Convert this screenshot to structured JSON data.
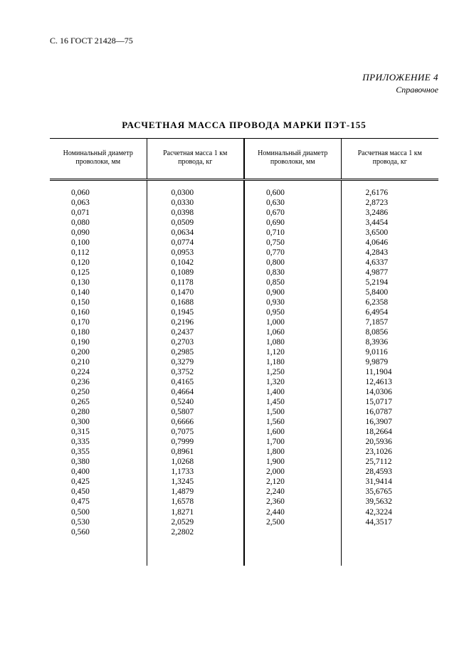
{
  "header": {
    "page_ref": "С. 16 ГОСТ 21428—75"
  },
  "appendix": {
    "label": "ПРИЛОЖЕНИЕ 4",
    "note": "Справочное"
  },
  "title": "РАСЧЕТНАЯ МАССА ПРОВОДА МАРКИ ПЭТ-155",
  "columns": {
    "diam": "Номинальный\nдиаметр проволоки,\nмм",
    "mass": "Расчетная масса\n1 км провода, кг"
  },
  "left": {
    "diam": [
      "0,060",
      "0,063",
      "0,071",
      "0,080",
      "0,090",
      "0,100",
      "0,112",
      "0,120",
      "0,125",
      "0,130",
      "0,140",
      "0,150",
      "0,160",
      "0,170",
      "0,180",
      "0,190",
      "0,200",
      "0,210",
      "0,224",
      "0,236",
      "0,250",
      "0,265",
      "0,280",
      "0,300",
      "0,315",
      "0,335",
      "0,355",
      "0,380",
      "0,400",
      "0,425",
      "0,450",
      "0,475",
      "0,500",
      "0,530",
      "0,560"
    ],
    "mass": [
      "0,0300",
      "0,0330",
      "0,0398",
      "0,0509",
      "0,0634",
      "0,0774",
      "0,0953",
      "0,1042",
      "0,1089",
      "0,1178",
      "0,1470",
      "0,1688",
      "0,1945",
      "0,2196",
      "0,2437",
      "0,2703",
      "0,2985",
      "0,3279",
      "0,3752",
      "0,4165",
      "0,4664",
      "0,5240",
      "0,5807",
      "0,6666",
      "0,7075",
      "0,7999",
      "0,8961",
      "1,0268",
      "1,1733",
      "1,3245",
      "1,4879",
      "1,6578",
      "1,8271",
      "2,0529",
      "2,2802"
    ]
  },
  "right": {
    "diam": [
      "0,600",
      "0,630",
      "0,670",
      "0,690",
      "0,710",
      "0,750",
      "0,770",
      "0,800",
      "0,830",
      "0,850",
      "0,900",
      "0,930",
      "0,950",
      "1,000",
      "1,060",
      "1,080",
      "1,120",
      "1,180",
      "1,250",
      "1,320",
      "1,400",
      "1,450",
      "1,500",
      "1,560",
      "1,600",
      "1,700",
      "1,800",
      "1,900",
      "2,000",
      "2,120",
      "2,240",
      "2,360",
      "2,440",
      "2,500"
    ],
    "mass": [
      "2,6176",
      "2,8723",
      "3,2486",
      "3,4454",
      "3,6500",
      "4,0646",
      "4,2843",
      "4,6337",
      "4,9877",
      "5,2194",
      "5,8400",
      "6,2358",
      "6,4954",
      "7,1857",
      "8,0856",
      "8,3936",
      "9,0116",
      "9,9879",
      "11,1904",
      "12,4613",
      "14,0306",
      "15,0717",
      "16,0787",
      "16,3907",
      "18,2664",
      "20,5936",
      "23,1026",
      "25,7112",
      "28,4593",
      "31,9414",
      "35,6765",
      "39,5632",
      "42,3224",
      "44,3517"
    ]
  }
}
